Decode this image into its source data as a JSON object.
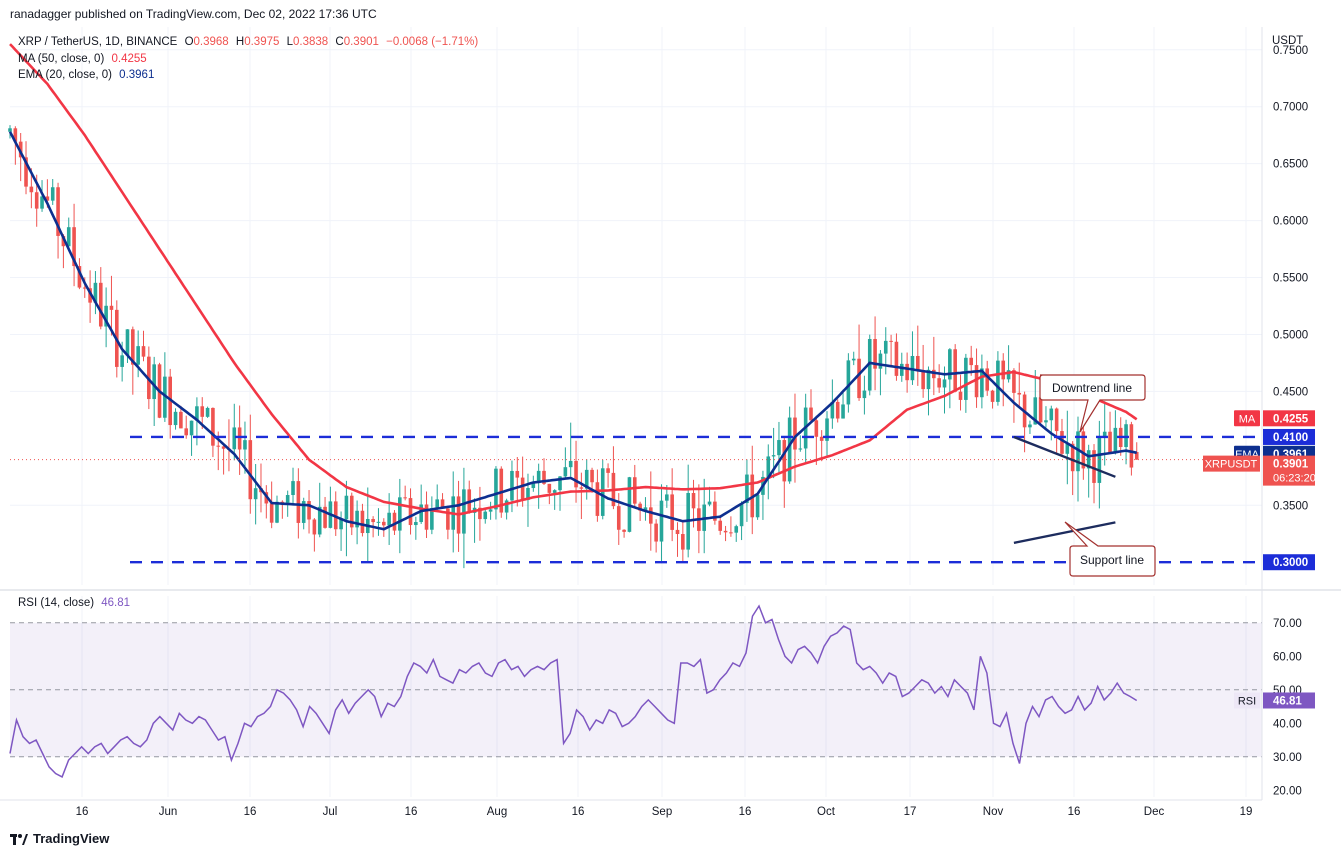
{
  "header": {
    "published": "ranadagger published on TradingView.com, Dec 02, 2022 17:36 UTC"
  },
  "legend": {
    "symbol": "XRP / TetherUS, 1D, BINANCE",
    "o_label": "O",
    "o": "0.3968",
    "h_label": "H",
    "h": "0.3975",
    "l_label": "L",
    "l": "0.3838",
    "c_label": "C",
    "c": "0.3901",
    "change": "−0.0068 (−1.71%)",
    "ma_label": "MA (50, close, 0)",
    "ma_value": "0.4255",
    "ema_label": "EMA (20, close, 0)",
    "ema_value": "0.3961",
    "rsi_label": "RSI (14, close)",
    "rsi_value": "46.81"
  },
  "brand": {
    "name": "TradingView"
  },
  "colors": {
    "up": "#26a69a",
    "down": "#ef5350",
    "ma": "#f23645",
    "ema": "#0d2f8f",
    "rsi": "#7e57c2",
    "level": "#1c2dd8",
    "annotation": "#a3312f"
  },
  "chart_data": [
    {
      "type": "candlestick",
      "title": "XRP / TetherUS, 1D, BINANCE",
      "y_axis_unit": "USDT",
      "ylim": [
        0.28,
        0.77
      ],
      "y_ticks": [
        "0.7500",
        "0.7000",
        "0.6500",
        "0.6000",
        "0.5500",
        "0.5000",
        "0.4500",
        "0.3500"
      ],
      "x_ticks": [
        "16",
        "Jun",
        "16",
        "Jul",
        "16",
        "Aug",
        "16",
        "Sep",
        "16",
        "Oct",
        "17",
        "Nov",
        "16",
        "Dec",
        "19"
      ],
      "series": [
        {
          "name": "MA (50, close, 0)",
          "last": 0.4255,
          "points": [
            [
              "2022-05-05",
              0.755
            ],
            [
              "2022-05-12",
              0.72
            ],
            [
              "2022-05-19",
              0.675
            ],
            [
              "2022-05-26",
              0.625
            ],
            [
              "2022-06-02",
              0.575
            ],
            [
              "2022-06-09",
              0.525
            ],
            [
              "2022-06-16",
              0.475
            ],
            [
              "2022-06-23",
              0.43
            ],
            [
              "2022-06-30",
              0.39
            ],
            [
              "2022-07-07",
              0.366
            ],
            [
              "2022-07-14",
              0.353
            ],
            [
              "2022-07-21",
              0.347
            ],
            [
              "2022-07-28",
              0.342
            ],
            [
              "2022-08-04",
              0.349
            ],
            [
              "2022-08-11",
              0.357
            ],
            [
              "2022-08-18",
              0.362
            ],
            [
              "2022-08-25",
              0.363
            ],
            [
              "2022-09-01",
              0.366
            ],
            [
              "2022-09-08",
              0.364
            ],
            [
              "2022-09-15",
              0.365
            ],
            [
              "2022-09-22",
              0.37
            ],
            [
              "2022-09-29",
              0.384
            ],
            [
              "2022-10-06",
              0.394
            ],
            [
              "2022-10-13",
              0.407
            ],
            [
              "2022-10-20",
              0.434
            ],
            [
              "2022-10-27",
              0.446
            ],
            [
              "2022-11-03",
              0.463
            ],
            [
              "2022-11-09",
              0.467
            ],
            [
              "2022-11-16",
              0.459
            ],
            [
              "2022-11-23",
              0.446
            ],
            [
              "2022-11-30",
              0.432
            ],
            [
              "2022-12-02",
              0.4255
            ]
          ]
        },
        {
          "name": "EMA (20, close, 0)",
          "last": 0.3961,
          "points": [
            [
              "2022-05-05",
              0.678
            ],
            [
              "2022-05-12",
              0.615
            ],
            [
              "2022-05-19",
              0.545
            ],
            [
              "2022-05-26",
              0.487
            ],
            [
              "2022-06-02",
              0.45
            ],
            [
              "2022-06-09",
              0.425
            ],
            [
              "2022-06-16",
              0.395
            ],
            [
              "2022-06-23",
              0.352
            ],
            [
              "2022-06-30",
              0.35
            ],
            [
              "2022-07-07",
              0.336
            ],
            [
              "2022-07-14",
              0.329
            ],
            [
              "2022-07-21",
              0.345
            ],
            [
              "2022-07-28",
              0.35
            ],
            [
              "2022-08-04",
              0.36
            ],
            [
              "2022-08-11",
              0.37
            ],
            [
              "2022-08-18",
              0.374
            ],
            [
              "2022-08-25",
              0.356
            ],
            [
              "2022-09-01",
              0.345
            ],
            [
              "2022-09-08",
              0.336
            ],
            [
              "2022-09-15",
              0.34
            ],
            [
              "2022-09-22",
              0.36
            ],
            [
              "2022-09-29",
              0.41
            ],
            [
              "2022-10-06",
              0.44
            ],
            [
              "2022-10-13",
              0.475
            ],
            [
              "2022-10-20",
              0.47
            ],
            [
              "2022-10-27",
              0.465
            ],
            [
              "2022-11-03",
              0.468
            ],
            [
              "2022-11-09",
              0.44
            ],
            [
              "2022-11-16",
              0.413
            ],
            [
              "2022-11-23",
              0.393
            ],
            [
              "2022-11-30",
              0.398
            ],
            [
              "2022-12-02",
              0.3961
            ]
          ]
        }
      ],
      "levels": [
        {
          "value": 0.41,
          "label": "0.4100"
        },
        {
          "value": 0.3,
          "label": "0.3000"
        }
      ],
      "price_tags": [
        {
          "name": "MA",
          "value": "0.4255",
          "y": 0.4255
        },
        {
          "name": "EMA",
          "value": "0.3961",
          "y": 0.3961
        },
        {
          "name": "XRPUSDT",
          "value": "0.3901",
          "countdown": "06:23:20",
          "y": 0.3901
        }
      ],
      "annotations": {
        "downtrend": "Downtrend line",
        "support": "Support line"
      }
    },
    {
      "type": "line",
      "title": "RSI (14, close)",
      "ylim": [
        18,
        78
      ],
      "y_ticks": [
        "70.00",
        "60.00",
        "50.00",
        "40.00",
        "30.00",
        "20.00"
      ],
      "band": [
        30,
        70
      ],
      "last": 46.81,
      "series": [
        {
          "name": "RSI (14, close)",
          "values": [
            31,
            41,
            36,
            34,
            35,
            31,
            27,
            25,
            24,
            29,
            31,
            33,
            31,
            33,
            34,
            31,
            33,
            35,
            36,
            34,
            33,
            35,
            40,
            42,
            40,
            38,
            43,
            41,
            40,
            42,
            41,
            38,
            35,
            36,
            29,
            34,
            40,
            39,
            42,
            43,
            45,
            50,
            49,
            47,
            44,
            39,
            45,
            43,
            40,
            37,
            44,
            47,
            43,
            46,
            48,
            50,
            48,
            42,
            46,
            45,
            48,
            54,
            58,
            57,
            55,
            59,
            54,
            53,
            52,
            56,
            55,
            57,
            58,
            55,
            54,
            58,
            59,
            56,
            57,
            54,
            56,
            57,
            56,
            58,
            59,
            34,
            37,
            44,
            42,
            38,
            41,
            40,
            44,
            43,
            39,
            40,
            42,
            45,
            47,
            45,
            43,
            41,
            40,
            58,
            58,
            57,
            59,
            49,
            50,
            53,
            55,
            58,
            57,
            61,
            72,
            75,
            70,
            71,
            65,
            60,
            58,
            62,
            63,
            61,
            58,
            63,
            66,
            67,
            69,
            68,
            58,
            56,
            57,
            55,
            52,
            55,
            54,
            48,
            49,
            51,
            53,
            52,
            49,
            51,
            48,
            53,
            51,
            49,
            44,
            60,
            55,
            40,
            39,
            43,
            34,
            28,
            40,
            45,
            42,
            47,
            48,
            45,
            43,
            44,
            48,
            44,
            46,
            51,
            47,
            49,
            52,
            49,
            48,
            46.81
          ]
        }
      ]
    }
  ]
}
